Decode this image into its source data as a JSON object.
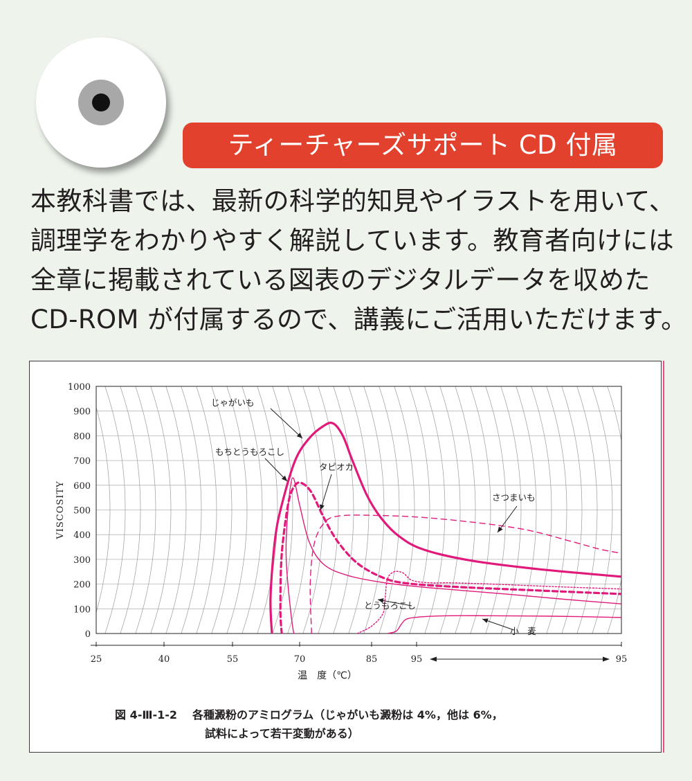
{
  "banner": {
    "text": "ティーチャーズサポート CD 付属"
  },
  "intro": {
    "lines": [
      "本教科書では、最新の科学的知見やイラストを用いて、",
      "調理学をわかりやすく解説しています。教育者向けには",
      "全章に掲載されている図表のデジタルデータを収めた",
      "CD-ROM が付属するので、講義にご活用いただけます。"
    ]
  },
  "colors": {
    "banner": "#e2412e",
    "curve": "#e0197a",
    "background": "#eef4ec",
    "grid": "#9a9a9a"
  },
  "figure": {
    "caption_number": "図 4-Ⅲ-1-2",
    "caption_line1": "各種澱粉のアミログラム（じゃがいも澱粉は 4%，他は 6%，",
    "caption_line2": "試料によって若干変動がある）"
  },
  "chart_data": {
    "type": "line",
    "title": "",
    "xlabel": "温　度（℃）",
    "ylabel": "VISCOSITY",
    "ylim": [
      0,
      1000
    ],
    "y_ticks": [
      0,
      100,
      200,
      300,
      400,
      500,
      600,
      700,
      800,
      900,
      1000
    ],
    "x_tick_labels": [
      "25",
      "40",
      "55",
      "70",
      "85",
      "95",
      "95"
    ],
    "x_axis_note": "95℃以降は95℃保持（時間経過）",
    "grid": true,
    "series": [
      {
        "name": "じゃがいも",
        "style": "solid-thick",
        "points": [
          [
            63.8,
            0
          ],
          [
            63.5,
            150
          ],
          [
            64.5,
            380
          ],
          [
            66,
            520
          ],
          [
            69,
            700
          ],
          [
            72,
            790
          ],
          [
            75,
            840
          ],
          [
            77,
            850
          ],
          [
            79,
            800
          ],
          [
            81,
            700
          ],
          [
            84,
            560
          ],
          [
            87,
            470
          ],
          [
            91,
            395
          ],
          [
            96,
            340
          ],
          [
            103,
            295
          ],
          [
            113,
            260
          ],
          [
            125,
            230
          ]
        ]
      },
      {
        "name": "もちとうもろこし",
        "style": "solid",
        "points": [
          [
            69.5,
            0
          ],
          [
            68.5,
            20
          ],
          [
            67,
            300
          ],
          [
            67.5,
            520
          ],
          [
            68.5,
            630
          ],
          [
            70,
            520
          ],
          [
            72,
            370
          ],
          [
            75,
            280
          ],
          [
            80,
            235
          ],
          [
            88,
            205
          ],
          [
            97,
            185
          ],
          [
            108,
            160
          ],
          [
            116,
            140
          ],
          [
            125,
            120
          ]
        ]
      },
      {
        "name": "タピオカ",
        "style": "dashed-thick",
        "points": [
          [
            66,
            0
          ],
          [
            65.7,
            100
          ],
          [
            66,
            320
          ],
          [
            67.5,
            530
          ],
          [
            69,
            600
          ],
          [
            70.5,
            608
          ],
          [
            72.5,
            570
          ],
          [
            75,
            470
          ],
          [
            78,
            370
          ],
          [
            82,
            285
          ],
          [
            87,
            230
          ],
          [
            92,
            205
          ],
          [
            100,
            190
          ],
          [
            112,
            175
          ],
          [
            125,
            160
          ]
        ]
      },
      {
        "name": "さつまいも",
        "style": "dashed",
        "points": [
          [
            72.5,
            0
          ],
          [
            72.2,
            200
          ],
          [
            73,
            360
          ],
          [
            75,
            445
          ],
          [
            78,
            475
          ],
          [
            86,
            478
          ],
          [
            98,
            465
          ],
          [
            110,
            425
          ],
          [
            118,
            370
          ],
          [
            122,
            340
          ],
          [
            125,
            325
          ]
        ]
      },
      {
        "name": "とうもろこし",
        "style": "dotted",
        "points": [
          [
            82,
            0
          ],
          [
            85,
            30
          ],
          [
            87.5,
            80
          ],
          [
            88,
            140
          ],
          [
            88.5,
            220
          ],
          [
            90,
            250
          ],
          [
            92,
            245
          ],
          [
            94,
            215
          ],
          [
            97,
            205
          ],
          [
            100,
            205
          ],
          [
            106,
            200
          ],
          [
            115,
            190
          ],
          [
            125,
            180
          ]
        ]
      },
      {
        "name": "小麦",
        "style": "solid",
        "points": [
          [
            88.5,
            0
          ],
          [
            90.5,
            10
          ],
          [
            91.7,
            40
          ],
          [
            93,
            60
          ],
          [
            96,
            68
          ],
          [
            100,
            72
          ],
          [
            105,
            72
          ],
          [
            115,
            70
          ],
          [
            125,
            65
          ]
        ]
      }
    ],
    "annotations": [
      {
        "label": "じゃがいも",
        "series": "じゃがいも"
      },
      {
        "label": "もちとうもろこし",
        "series": "もちとうもろこし"
      },
      {
        "label": "タピオカ",
        "series": "タピオカ"
      },
      {
        "label": "さつまいも",
        "series": "さつまいも"
      },
      {
        "label": "とうもろこし",
        "series": "とうもろこし"
      },
      {
        "label": "小　麦",
        "series": "小麦"
      }
    ]
  }
}
